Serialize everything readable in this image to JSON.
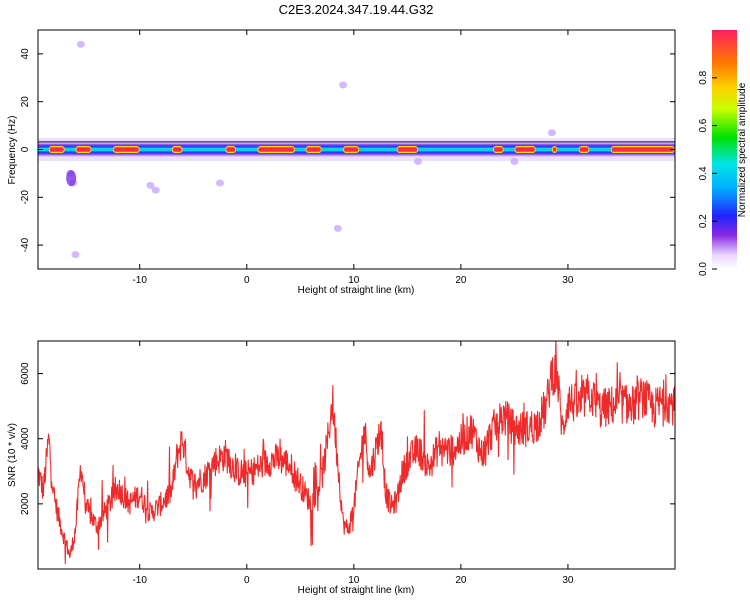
{
  "title": "C2E3.2024.347.19.44.G32",
  "chart_data": [
    {
      "type": "heatmap",
      "xlabel": "Height of straight line (km)",
      "ylabel": "Frequency (Hz)",
      "xlim": [
        -19.5,
        40
      ],
      "ylim": [
        -50,
        50
      ],
      "xticks": [
        -10,
        0,
        10,
        20,
        30
      ],
      "yticks": [
        -40,
        -20,
        0,
        20,
        40
      ],
      "colorbar": {
        "label": "Normalized spectral amplitude",
        "range": [
          0.0,
          1.0
        ],
        "ticks": [
          0.0,
          0.2,
          0.4,
          0.6,
          0.8
        ],
        "tick_labels": [
          "0.0",
          "0.2",
          "0.4",
          "0.6",
          "0.8"
        ]
      },
      "band_center_hz": 0,
      "band_halfwidth_hz": 3,
      "peak_segments_km": [
        [
          -18.5,
          -17
        ],
        [
          -16,
          -14.5
        ],
        [
          -12.5,
          -10
        ],
        [
          -7,
          -6
        ],
        [
          -2,
          -1
        ],
        [
          1,
          4.5
        ],
        [
          5.5,
          7
        ],
        [
          9,
          10.5
        ],
        [
          14,
          16
        ],
        [
          23,
          24
        ],
        [
          25,
          27
        ],
        [
          28.5,
          29
        ],
        [
          31,
          32
        ],
        [
          34,
          40
        ]
      ],
      "scatter_blobs": [
        [
          -16.5,
          -10
        ],
        [
          -16.2,
          -14
        ],
        [
          -8.5,
          -17
        ],
        [
          -9,
          -15
        ],
        [
          -2.5,
          -14
        ],
        [
          8.5,
          -33
        ],
        [
          9,
          27
        ],
        [
          -15.5,
          44
        ],
        [
          -16,
          -44
        ],
        [
          28.5,
          7
        ],
        [
          16,
          -5
        ],
        [
          25,
          -5
        ]
      ]
    },
    {
      "type": "line",
      "xlabel": "Height of straight line (km)",
      "ylabel": "SNR (10 * v/v)",
      "xlim": [
        -19.5,
        40
      ],
      "ylim": [
        0,
        7000
      ],
      "xticks": [
        -10,
        0,
        10,
        20,
        30
      ],
      "yticks": [
        2000,
        4000,
        6000
      ],
      "series": [
        {
          "color": "#ef2a2a",
          "x": [
            -19.5,
            -19,
            -18.5,
            -18,
            -17.5,
            -17,
            -16.5,
            -16,
            -15.5,
            -15,
            -14,
            -13,
            -12,
            -11,
            -10,
            -9,
            -8,
            -7,
            -6.5,
            -6,
            -5.5,
            -5,
            -4,
            -3,
            -2,
            -1,
            0,
            1,
            2,
            3,
            4,
            5,
            6,
            7,
            7.5,
            8,
            8.5,
            9,
            9.5,
            10,
            10.5,
            11,
            11.5,
            12,
            12.5,
            13,
            13.5,
            14,
            14.5,
            15,
            16,
            17,
            18,
            19,
            20,
            21,
            22,
            23,
            24,
            25,
            26,
            27,
            28,
            28.5,
            29,
            29.5,
            30,
            31,
            32,
            33,
            34,
            35,
            36,
            37,
            38,
            39,
            40
          ],
          "y": [
            3000,
            2400,
            4000,
            2200,
            1500,
            900,
            400,
            1200,
            3200,
            1900,
            1300,
            1900,
            2500,
            2000,
            2300,
            1700,
            2000,
            2400,
            3500,
            4000,
            3100,
            2600,
            2800,
            3300,
            3500,
            3000,
            2900,
            3100,
            3300,
            3400,
            3200,
            2600,
            2000,
            2800,
            3800,
            5200,
            3300,
            1400,
            1200,
            1900,
            3200,
            4300,
            2900,
            3600,
            4300,
            2300,
            1900,
            2100,
            2900,
            3300,
            3700,
            3100,
            3800,
            3600,
            3900,
            4300,
            3500,
            4300,
            4700,
            4300,
            4300,
            4400,
            5000,
            6100,
            5900,
            4200,
            5200,
            5000,
            5400,
            4900,
            5000,
            5100,
            5000,
            5300,
            4900,
            5200,
            5000
          ]
        }
      ]
    }
  ]
}
